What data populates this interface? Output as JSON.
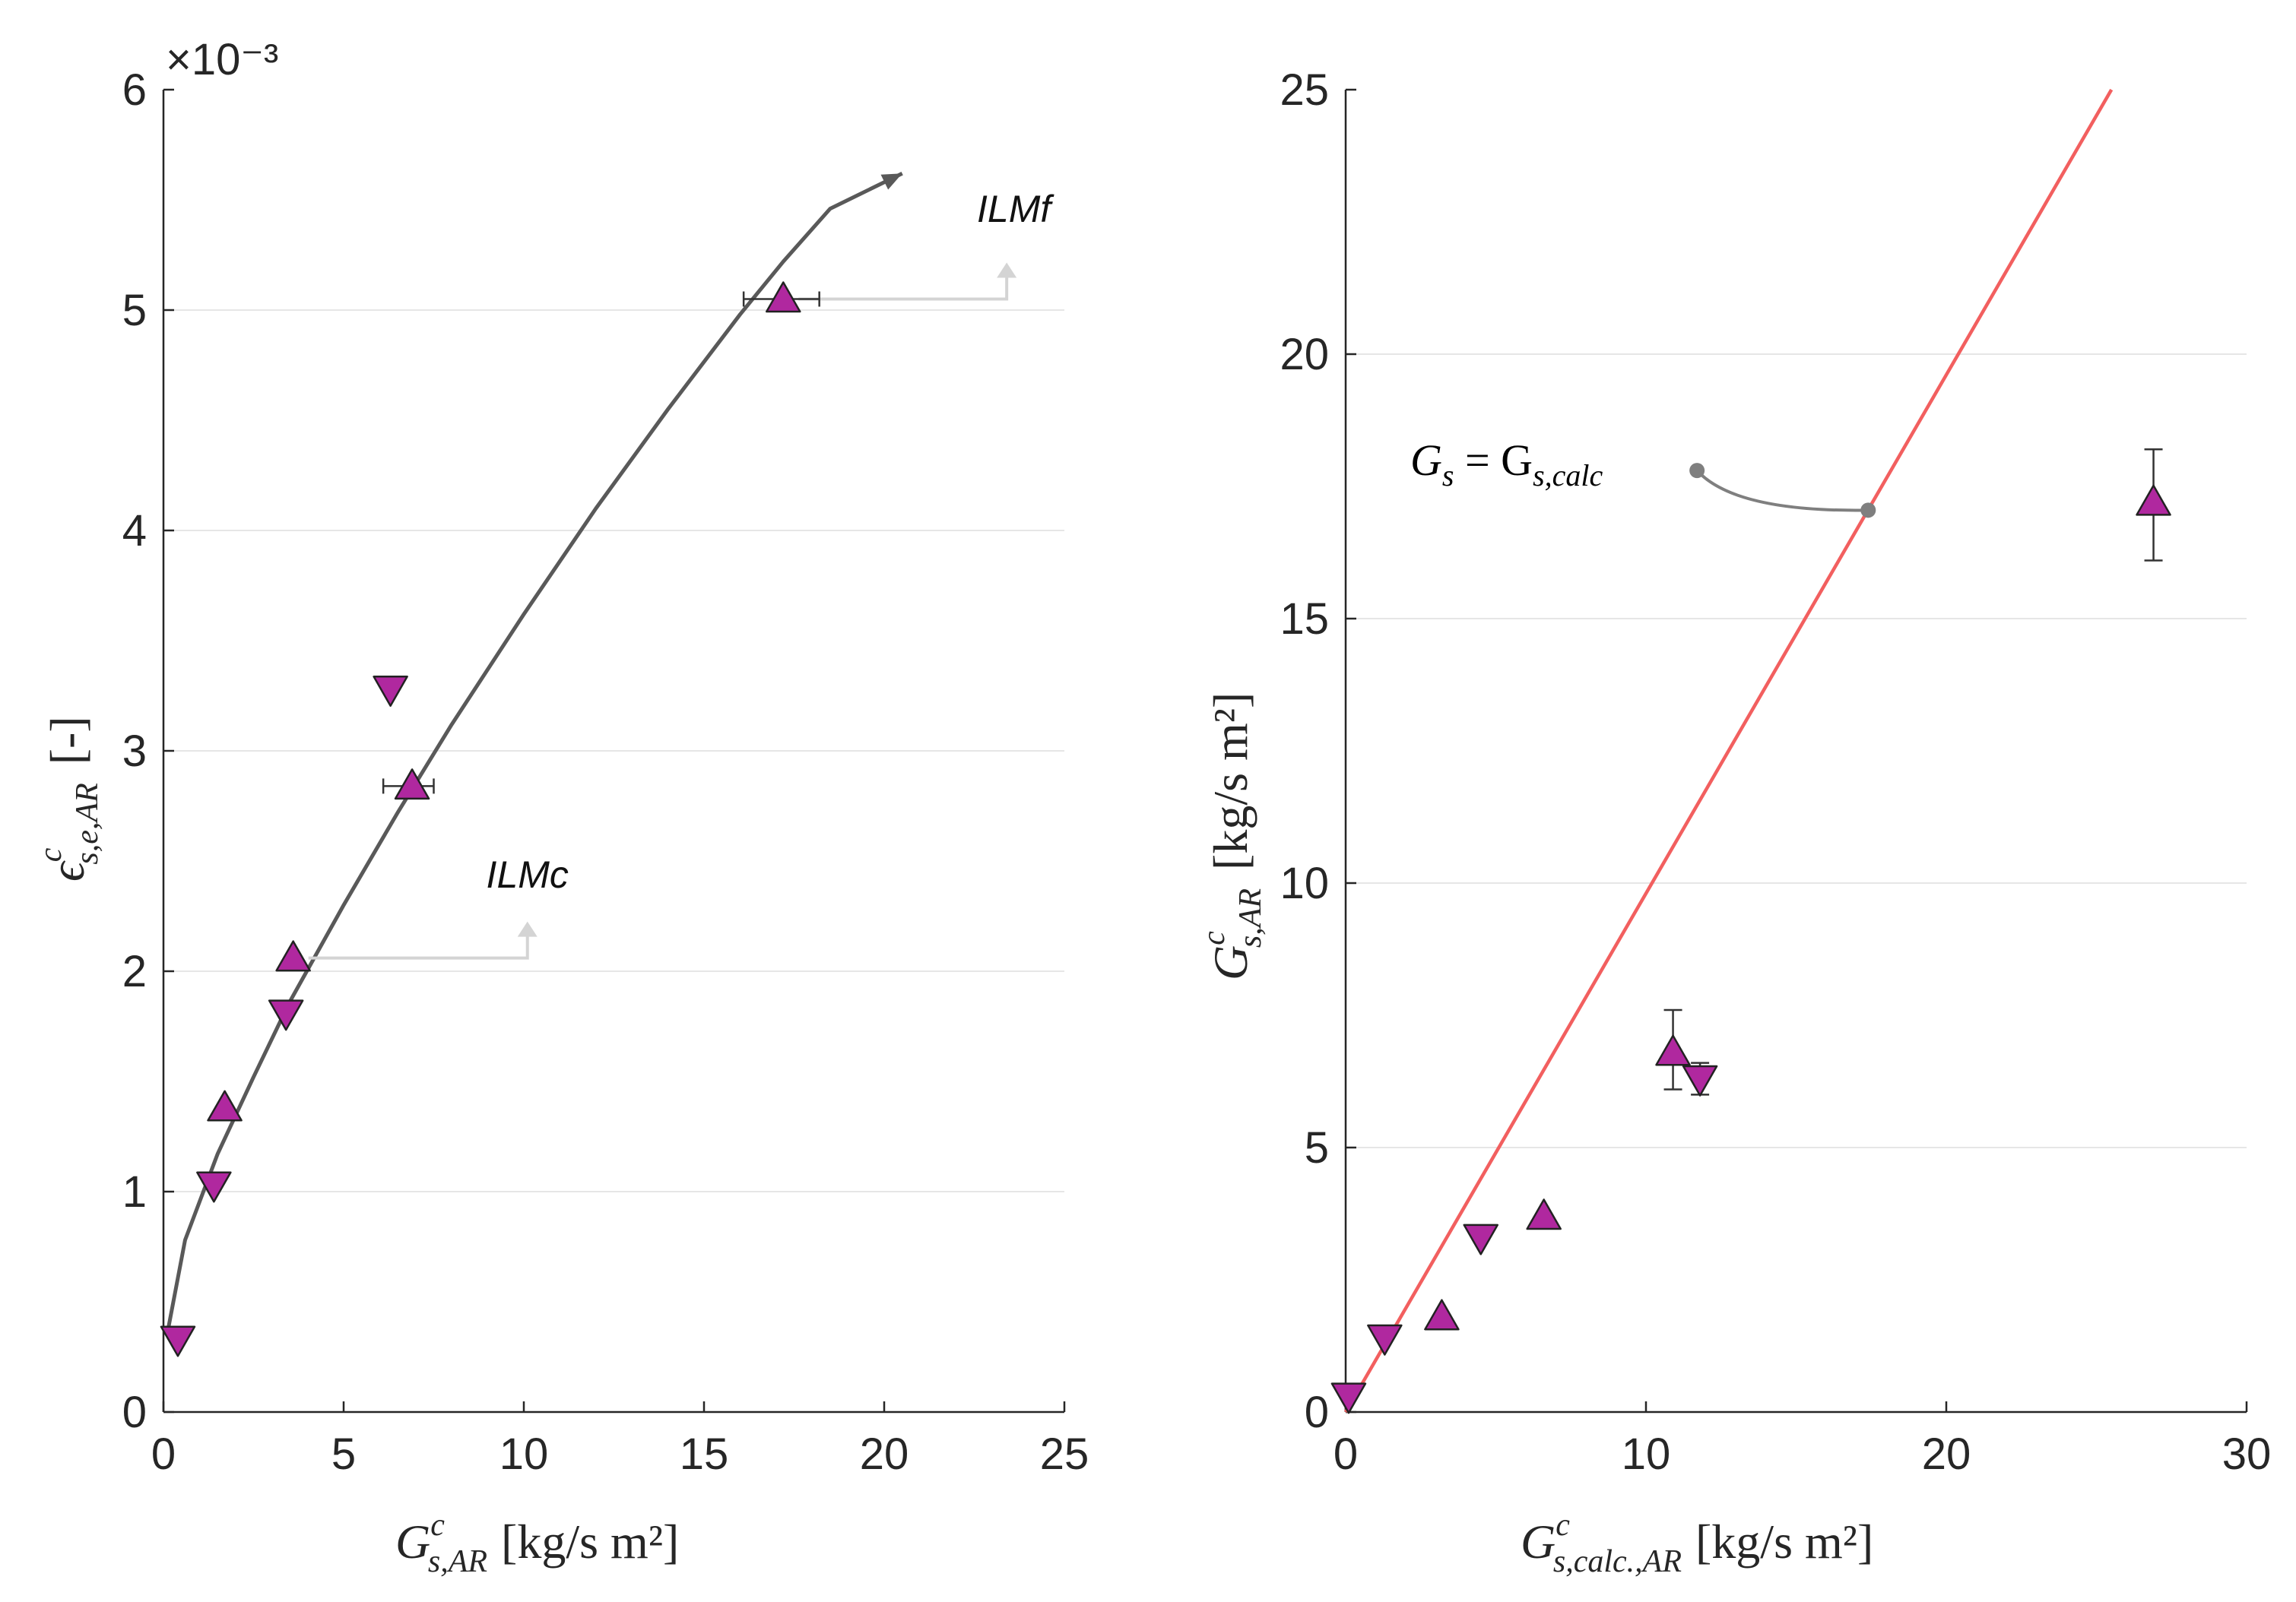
{
  "chart_data": [
    {
      "type": "scatter",
      "panel": "left",
      "xlabel_main": "G",
      "xlabel_sup": "c",
      "xlabel_sub": "s,AR",
      "xlabel_units": "[kg/s m²]",
      "ylabel_main": "ϵ",
      "ylabel_sup": "c",
      "ylabel_sub": "s,e,AR",
      "ylabel_units": "[-]",
      "y_exponent_label": "×10⁻³",
      "xlim": [
        0,
        25
      ],
      "ylim": [
        0,
        6
      ],
      "xticks": [
        0,
        5,
        10,
        15,
        20,
        25
      ],
      "yticks": [
        0,
        1,
        2,
        3,
        4,
        5,
        6
      ],
      "ygrid": [
        1,
        2,
        3,
        4,
        5
      ],
      "series": [
        {
          "name": "up-triangles",
          "marker": "up-triangle",
          "color": "#b0289f",
          "points": [
            {
              "x": 1.7,
              "y": 1.38
            },
            {
              "x": 3.6,
              "y": 2.06
            },
            {
              "x": 6.9,
              "y": 2.84,
              "xerr": [
                6.1,
                7.5
              ]
            },
            {
              "x": 17.2,
              "y": 5.05,
              "xerr": [
                16.1,
                18.2
              ]
            }
          ]
        },
        {
          "name": "down-triangles",
          "marker": "down-triangle",
          "color": "#b0289f",
          "points": [
            {
              "x": 0.4,
              "y": 0.33
            },
            {
              "x": 1.4,
              "y": 1.03
            },
            {
              "x": 3.4,
              "y": 1.81
            },
            {
              "x": 6.3,
              "y": 3.28
            }
          ]
        }
      ],
      "fit_curve": {
        "color": "#595959",
        "points": [
          [
            0.1,
            0.35
          ],
          [
            0.6,
            0.78
          ],
          [
            1.5,
            1.17
          ],
          [
            2.5,
            1.52
          ],
          [
            3.5,
            1.86
          ],
          [
            5,
            2.3
          ],
          [
            6.5,
            2.72
          ],
          [
            8,
            3.12
          ],
          [
            10,
            3.62
          ],
          [
            12,
            4.1
          ],
          [
            14,
            4.55
          ],
          [
            16,
            4.98
          ],
          [
            17.2,
            5.22
          ],
          [
            18.5,
            5.46
          ],
          [
            20.5,
            5.62
          ]
        ]
      },
      "annotations": [
        {
          "text": "ILMf",
          "point": [
            17.2,
            5.05
          ],
          "corner": [
            23.4,
            5.05
          ],
          "label_at": [
            23.6,
            5.4
          ]
        },
        {
          "text": "ILMc",
          "point": [
            3.6,
            2.06
          ],
          "corner": [
            10.1,
            2.06
          ],
          "label_at": [
            10.1,
            2.38
          ]
        }
      ]
    },
    {
      "type": "scatter",
      "panel": "right",
      "xlabel_main": "G",
      "xlabel_sup": "c",
      "xlabel_sub": "s,calc.,AR",
      "xlabel_units": "[kg/s m²]",
      "ylabel_main": "G",
      "ylabel_sup": "c",
      "ylabel_sub": "s,AR",
      "ylabel_units": "[kg/s m²]",
      "xlim": [
        0,
        30
      ],
      "ylim": [
        0,
        25
      ],
      "xticks": [
        0,
        10,
        20,
        30
      ],
      "yticks": [
        0,
        5,
        10,
        15,
        20,
        25
      ],
      "ygrid": [
        5,
        10,
        15,
        20
      ],
      "series": [
        {
          "name": "up-triangles",
          "marker": "up-triangle",
          "color": "#b0289f",
          "points": [
            {
              "x": 3.2,
              "y": 1.8
            },
            {
              "x": 6.6,
              "y": 3.7
            },
            {
              "x": 10.9,
              "y": 6.8,
              "yerr": [
                6.1,
                7.6
              ]
            },
            {
              "x": 26.9,
              "y": 17.2,
              "yerr": [
                16.1,
                18.2
              ]
            }
          ]
        },
        {
          "name": "down-triangles",
          "marker": "down-triangle",
          "color": "#b0289f",
          "points": [
            {
              "x": 0.1,
              "y": 0.3
            },
            {
              "x": 1.3,
              "y": 1.4
            },
            {
              "x": 4.5,
              "y": 3.3
            },
            {
              "x": 11.8,
              "y": 6.3,
              "yerr": [
                6.0,
                6.6
              ]
            }
          ]
        }
      ],
      "identity_line": {
        "from": [
          0,
          0
        ],
        "to": [
          25.5,
          25
        ],
        "color": "#f25f5f"
      },
      "identity_label": {
        "text_main": "G",
        "text_sub": "s",
        "text_eq": " = G",
        "text_sub2": "s,calc",
        "dot_at": [
          11.7,
          17.8
        ],
        "end_at": [
          17.4,
          17.05
        ]
      }
    }
  ]
}
